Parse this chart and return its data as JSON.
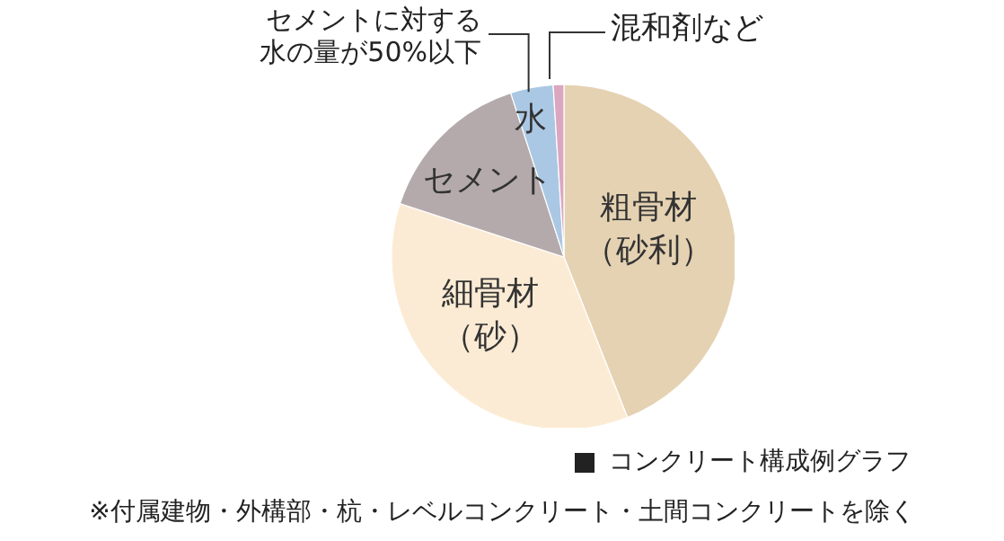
{
  "chart_data": {
    "type": "pie",
    "title": "コンクリート構成例グラフ",
    "categories": [
      "粗骨材（砂利）",
      "細骨材（砂）",
      "セメント",
      "水",
      "混和剤など"
    ],
    "values": [
      44,
      36,
      15,
      4,
      1
    ],
    "colors": [
      "#e5d2b2",
      "#fcebd4",
      "#b4aaac",
      "#aac8e4",
      "#dba7c0"
    ],
    "annotations": [
      {
        "text": "セメントに対する水の量が50%以下",
        "x": "水"
      },
      "※付属建物・外構部・杭・レベルコンクリート・土間コンクリートを除く"
    ]
  }
}
